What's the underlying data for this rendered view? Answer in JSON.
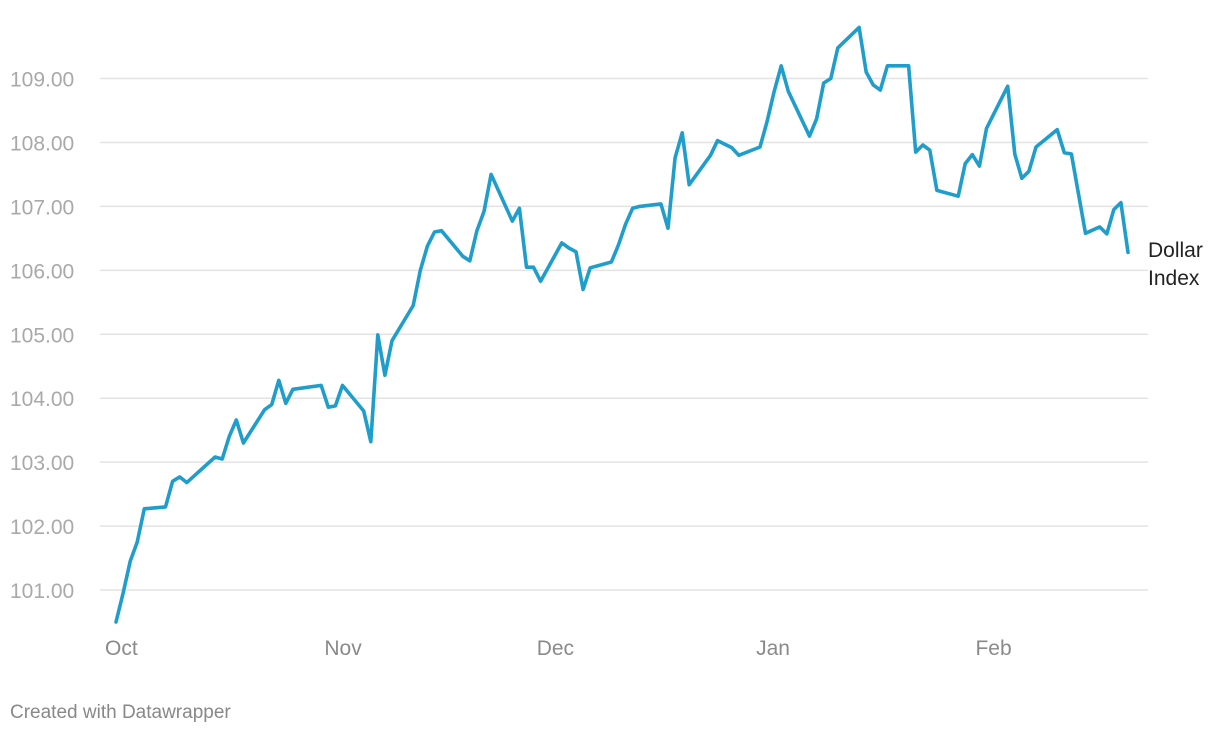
{
  "chart_data": {
    "type": "line",
    "title": "",
    "xlabel": "",
    "ylabel": "",
    "ylim": [
      100.5,
      109.9
    ],
    "yticks": [
      101,
      102,
      103,
      104,
      105,
      106,
      107,
      108,
      109
    ],
    "ytick_labels": [
      "101.00",
      "102.00",
      "103.00",
      "104.00",
      "105.00",
      "106.00",
      "107.00",
      "108.00",
      "109.00"
    ],
    "xticks": [
      {
        "label": "Oct",
        "x": 0
      },
      {
        "label": "Nov",
        "x": 31
      },
      {
        "label": "Dec",
        "x": 61
      },
      {
        "label": "Jan",
        "x": 92
      },
      {
        "label": "Feb",
        "x": 123
      }
    ],
    "grid": true,
    "legend": "none",
    "series": [
      {
        "name": "Dollar Index",
        "label_lines": [
          "Dollar",
          "Index"
        ],
        "color": "#1f9ecb",
        "points": [
          [
            0,
            100.5
          ],
          [
            1,
            100.95
          ],
          [
            2,
            101.45
          ],
          [
            3,
            101.75
          ],
          [
            4,
            102.27
          ],
          [
            7,
            102.3
          ],
          [
            8,
            102.7
          ],
          [
            9,
            102.77
          ],
          [
            10,
            102.68
          ],
          [
            14,
            103.08
          ],
          [
            15,
            103.05
          ],
          [
            16,
            103.4
          ],
          [
            17,
            103.66
          ],
          [
            18,
            103.3
          ],
          [
            21,
            103.82
          ],
          [
            22,
            103.9
          ],
          [
            23,
            104.28
          ],
          [
            24,
            103.92
          ],
          [
            25,
            104.14
          ],
          [
            29,
            104.2
          ],
          [
            30,
            103.86
          ],
          [
            31,
            103.88
          ],
          [
            32,
            104.2
          ],
          [
            35,
            103.8
          ],
          [
            36,
            103.32
          ],
          [
            37,
            104.99
          ],
          [
            38,
            104.36
          ],
          [
            39,
            104.9
          ],
          [
            42,
            105.45
          ],
          [
            43,
            106.0
          ],
          [
            44,
            106.38
          ],
          [
            45,
            106.6
          ],
          [
            46,
            106.62
          ],
          [
            49,
            106.22
          ],
          [
            50,
            106.15
          ],
          [
            51,
            106.62
          ],
          [
            52,
            106.92
          ],
          [
            53,
            107.5
          ],
          [
            56,
            106.77
          ],
          [
            57,
            106.97
          ],
          [
            58,
            106.05
          ],
          [
            59,
            106.05
          ],
          [
            60,
            105.83
          ],
          [
            63,
            106.43
          ],
          [
            64,
            106.35
          ],
          [
            65,
            106.29
          ],
          [
            66,
            105.7
          ],
          [
            67,
            106.04
          ],
          [
            70,
            106.13
          ],
          [
            71,
            106.4
          ],
          [
            72,
            106.72
          ],
          [
            73,
            106.97
          ],
          [
            74,
            107.0
          ],
          [
            77,
            107.04
          ],
          [
            78,
            106.66
          ],
          [
            79,
            107.76
          ],
          [
            80,
            108.15
          ],
          [
            81,
            107.34
          ],
          [
            84,
            107.8
          ],
          [
            85,
            108.03
          ],
          [
            87,
            107.92
          ],
          [
            88,
            107.8
          ],
          [
            91,
            107.93
          ],
          [
            92,
            108.33
          ],
          [
            93,
            108.8
          ],
          [
            94,
            109.2
          ],
          [
            95,
            108.8
          ],
          [
            98,
            108.1
          ],
          [
            99,
            108.37
          ],
          [
            100,
            108.93
          ],
          [
            101,
            109.0
          ],
          [
            102,
            109.48
          ],
          [
            105,
            109.8
          ],
          [
            106,
            109.1
          ],
          [
            107,
            108.9
          ],
          [
            108,
            108.82
          ],
          [
            109,
            109.2
          ],
          [
            112,
            109.2
          ],
          [
            113,
            107.85
          ],
          [
            114,
            107.96
          ],
          [
            115,
            107.88
          ],
          [
            116,
            107.25
          ],
          [
            119,
            107.16
          ],
          [
            120,
            107.67
          ],
          [
            121,
            107.81
          ],
          [
            122,
            107.63
          ],
          [
            123,
            108.22
          ],
          [
            126,
            108.88
          ],
          [
            127,
            107.82
          ],
          [
            128,
            107.44
          ],
          [
            129,
            107.55
          ],
          [
            130,
            107.93
          ],
          [
            133,
            108.2
          ],
          [
            134,
            107.84
          ],
          [
            135,
            107.82
          ],
          [
            137,
            106.58
          ],
          [
            139,
            106.68
          ],
          [
            140,
            106.57
          ],
          [
            141,
            106.95
          ],
          [
            142,
            107.06
          ],
          [
            143,
            106.28
          ]
        ]
      }
    ]
  },
  "credit": "Created with Datawrapper"
}
